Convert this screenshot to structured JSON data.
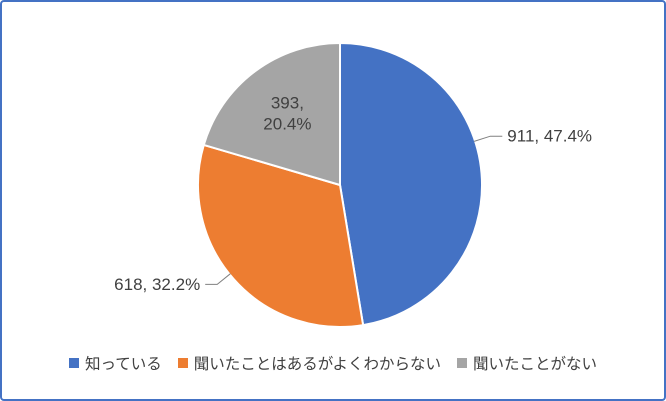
{
  "chart_data": {
    "type": "pie",
    "title": "",
    "legend_position": "bottom",
    "start_angle_deg": 0,
    "direction": "clockwise",
    "slices": [
      {
        "legend_label": "知っている",
        "value": 911,
        "percent": 47.4,
        "data_label": "911, 47.4%",
        "color": "#4472C4",
        "label_placement": "outside-right"
      },
      {
        "legend_label": "聞いたことはあるがよくわからない",
        "value": 618,
        "percent": 32.2,
        "data_label": "618, 32.2%",
        "color": "#ED7D31",
        "label_placement": "outside-left"
      },
      {
        "legend_label": "聞いたことがない",
        "value": 393,
        "percent": 20.4,
        "data_label": "393, 20.4%",
        "color": "#A5A5A5",
        "label_placement": "inside"
      }
    ]
  },
  "frame": {
    "border_color": "#4472C4",
    "background": "#FFFFFF"
  },
  "label_style": {
    "text_color": "#404040",
    "leader_line_color": "#808080",
    "slice_separator_color": "#FFFFFF"
  }
}
